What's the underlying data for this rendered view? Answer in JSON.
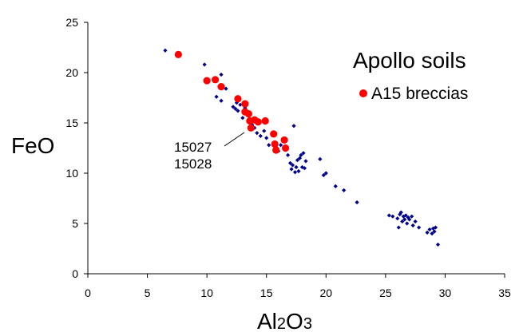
{
  "chart_data": {
    "type": "scatter",
    "xlabel": {
      "main": "Al",
      "sub1": "2",
      "mid": "O",
      "sub2": "3"
    },
    "ylabel": "FeO",
    "xlim": [
      0,
      35
    ],
    "ylim": [
      0,
      25
    ],
    "x_ticks": [
      0,
      5,
      10,
      15,
      20,
      25,
      30,
      35
    ],
    "y_ticks": [
      0,
      5,
      10,
      15,
      20,
      25
    ],
    "grid": false,
    "legend_position": "top-right",
    "colors": {
      "soils": "#00008b",
      "breccias": "#ff0000"
    },
    "legend": {
      "title": "Apollo soils",
      "entry": "A15 breccias"
    },
    "annotation": {
      "line1": "15027",
      "line2": "15028",
      "target": [
        13.5,
        14.8
      ]
    },
    "series": [
      {
        "name": "Apollo soils",
        "marker": "diamond",
        "points": [
          [
            6.5,
            22.2
          ],
          [
            9.8,
            20.8
          ],
          [
            10.8,
            17.6
          ],
          [
            11.2,
            17.2
          ],
          [
            11.2,
            19.8
          ],
          [
            11.6,
            18.4
          ],
          [
            12.2,
            16.6
          ],
          [
            12.4,
            16.4
          ],
          [
            12.5,
            17.0
          ],
          [
            12.6,
            16.2
          ],
          [
            12.8,
            16.8
          ],
          [
            13.0,
            15.5
          ],
          [
            13.2,
            16.5
          ],
          [
            13.5,
            15.2
          ],
          [
            13.8,
            14.8
          ],
          [
            14.0,
            14.5
          ],
          [
            14.2,
            14.0
          ],
          [
            14.5,
            13.7
          ],
          [
            14.8,
            14.2
          ],
          [
            15.0,
            13.5
          ],
          [
            15.2,
            12.8
          ],
          [
            15.6,
            13.0
          ],
          [
            15.8,
            12.6
          ],
          [
            16.0,
            12.2
          ],
          [
            16.2,
            12.8
          ],
          [
            16.5,
            12.4
          ],
          [
            16.8,
            11.8
          ],
          [
            17.0,
            11.0
          ],
          [
            17.1,
            10.4
          ],
          [
            17.2,
            10.8
          ],
          [
            17.3,
            14.7
          ],
          [
            17.4,
            10.1
          ],
          [
            17.5,
            10.6
          ],
          [
            17.6,
            11.3
          ],
          [
            17.7,
            10.2
          ],
          [
            17.8,
            11.5
          ],
          [
            17.9,
            11.8
          ],
          [
            18.0,
            10.6
          ],
          [
            18.1,
            12.0
          ],
          [
            18.2,
            10.5
          ],
          [
            18.3,
            11.2
          ],
          [
            19.5,
            11.4
          ],
          [
            19.8,
            9.8
          ],
          [
            20.0,
            10.0
          ],
          [
            20.8,
            8.7
          ],
          [
            21.5,
            8.3
          ],
          [
            22.6,
            7.1
          ],
          [
            25.3,
            5.8
          ],
          [
            25.6,
            5.7
          ],
          [
            26.0,
            5.5
          ],
          [
            26.1,
            4.6
          ],
          [
            26.2,
            5.9
          ],
          [
            26.3,
            6.1
          ],
          [
            26.4,
            5.2
          ],
          [
            26.5,
            5.7
          ],
          [
            26.6,
            5.4
          ],
          [
            26.7,
            5.8
          ],
          [
            26.8,
            5.0
          ],
          [
            26.9,
            5.6
          ],
          [
            27.0,
            5.4
          ],
          [
            27.2,
            5.7
          ],
          [
            27.3,
            4.8
          ],
          [
            27.5,
            5.2
          ],
          [
            27.8,
            4.6
          ],
          [
            28.5,
            4.1
          ],
          [
            28.7,
            4.4
          ],
          [
            28.9,
            4.0
          ],
          [
            29.0,
            4.5
          ],
          [
            29.1,
            4.2
          ],
          [
            29.2,
            4.6
          ],
          [
            29.4,
            2.9
          ]
        ]
      },
      {
        "name": "A15 breccias",
        "marker": "circle",
        "points": [
          [
            7.6,
            21.8
          ],
          [
            10.0,
            19.2
          ],
          [
            10.7,
            19.3
          ],
          [
            11.2,
            18.6
          ],
          [
            12.6,
            17.4
          ],
          [
            13.2,
            16.9
          ],
          [
            13.2,
            16.1
          ],
          [
            13.5,
            15.9
          ],
          [
            13.6,
            15.2
          ],
          [
            13.7,
            14.5
          ],
          [
            14.0,
            15.3
          ],
          [
            14.3,
            15.1
          ],
          [
            14.9,
            15.2
          ],
          [
            15.6,
            13.9
          ],
          [
            15.7,
            12.9
          ],
          [
            15.8,
            12.3
          ],
          [
            16.5,
            13.3
          ],
          [
            16.6,
            12.5
          ]
        ]
      }
    ]
  }
}
